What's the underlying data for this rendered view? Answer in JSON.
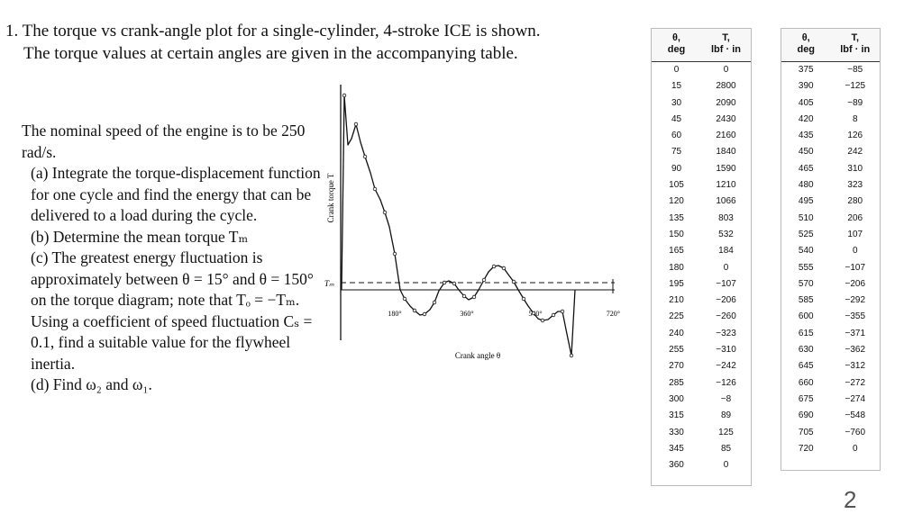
{
  "heading": {
    "line1": "1. The torque vs crank-angle plot for a single-cylinder, 4-stroke ICE is shown.",
    "line2": "The torque values at certain angles are given in the accompanying table."
  },
  "problem": {
    "intro": "The nominal speed of the engine is to be 250 rad/s.",
    "a": "(a) Integrate the torque-displacement function for one cycle and find the energy that can be delivered to a load during the cycle.",
    "b": "(b) Determine the mean torque Tₘ",
    "c": "(c) The greatest energy fluctuation is approximately between θ = 15° and θ = 150° on the torque diagram; note that Tₒ = −Tₘ. Using a coefficient of speed fluctuation Cₛ = 0.1, find a suitable value for the flywheel inertia.",
    "d": "(d) Find ω₂ and ω₁."
  },
  "graph": {
    "ylabel": "Crank torque T",
    "xlabel": "Crank angle θ",
    "tm_label": "Tₘ",
    "ticks": [
      "180°",
      "360°",
      "540°",
      "720°"
    ]
  },
  "table": {
    "col_theta": [
      "θ,",
      "deg"
    ],
    "col_T": [
      "T,",
      "lbf · in"
    ],
    "left_rows": [
      [
        "0",
        "0"
      ],
      [
        "15",
        "2800"
      ],
      [
        "30",
        "2090"
      ],
      [
        "45",
        "2430"
      ],
      [
        "60",
        "2160"
      ],
      [
        "75",
        "1840"
      ],
      [
        "90",
        "1590"
      ],
      [
        "105",
        "1210"
      ],
      [
        "120",
        "1066"
      ],
      [
        "135",
        "803"
      ],
      [
        "150",
        "532"
      ],
      [
        "165",
        "184"
      ],
      [
        "180",
        "0"
      ],
      [
        "195",
        "−107"
      ],
      [
        "210",
        "−206"
      ],
      [
        "225",
        "−260"
      ],
      [
        "240",
        "−323"
      ],
      [
        "255",
        "−310"
      ],
      [
        "270",
        "−242"
      ],
      [
        "285",
        "−126"
      ],
      [
        "300",
        "−8"
      ],
      [
        "315",
        "89"
      ],
      [
        "330",
        "125"
      ],
      [
        "345",
        "85"
      ],
      [
        "360",
        "0"
      ]
    ],
    "right_rows": [
      [
        "375",
        "−85"
      ],
      [
        "390",
        "−125"
      ],
      [
        "405",
        "−89"
      ],
      [
        "420",
        "8"
      ],
      [
        "435",
        "126"
      ],
      [
        "450",
        "242"
      ],
      [
        "465",
        "310"
      ],
      [
        "480",
        "323"
      ],
      [
        "495",
        "280"
      ],
      [
        "510",
        "206"
      ],
      [
        "525",
        "107"
      ],
      [
        "540",
        "0"
      ],
      [
        "555",
        "−107"
      ],
      [
        "570",
        "−206"
      ],
      [
        "585",
        "−292"
      ],
      [
        "600",
        "−355"
      ],
      [
        "615",
        "−371"
      ],
      [
        "630",
        "−362"
      ],
      [
        "645",
        "−312"
      ],
      [
        "660",
        "−272"
      ],
      [
        "675",
        "−274"
      ],
      [
        "690",
        "−548"
      ],
      [
        "705",
        "−760"
      ],
      [
        "720",
        "0"
      ]
    ]
  },
  "page_number": "2"
}
